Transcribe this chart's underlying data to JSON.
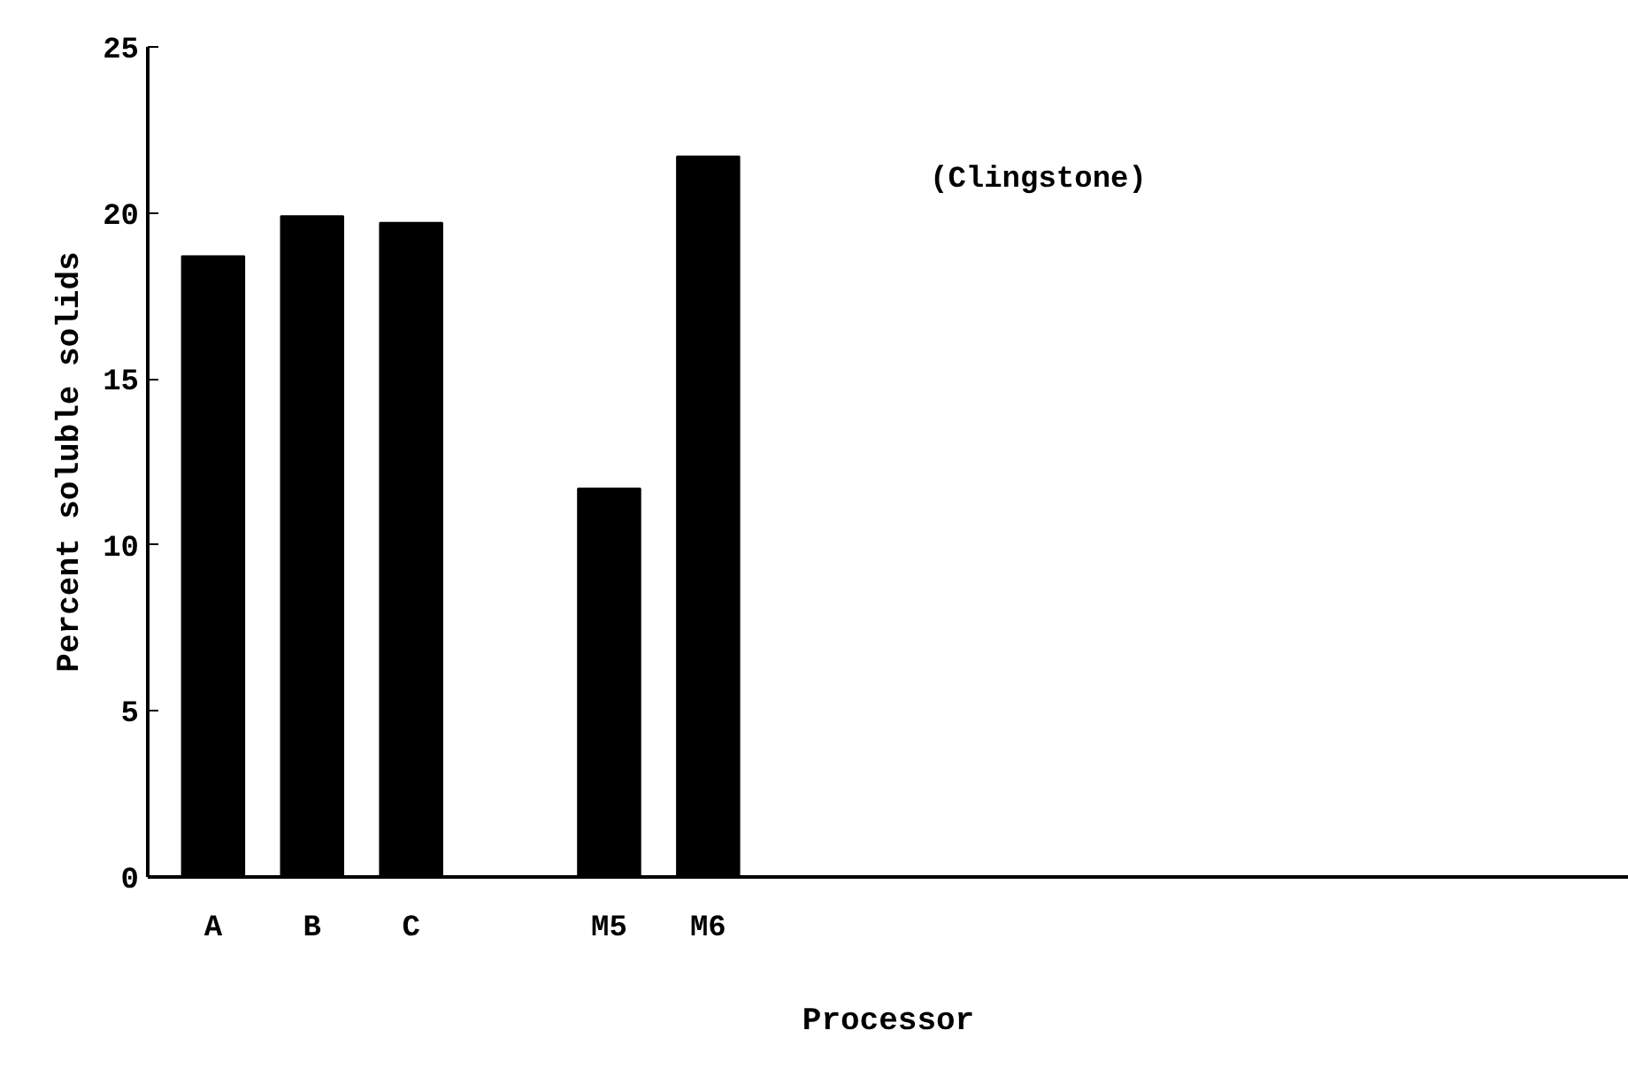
{
  "chart_data": {
    "type": "bar",
    "categories": [
      "A",
      "B",
      "C",
      null,
      "M5",
      "M6"
    ],
    "values": [
      18.7,
      19.9,
      19.7,
      null,
      11.7,
      21.7
    ],
    "color": "#000000",
    "xlabel": "Processor",
    "ylabel": "Percent soluble solids",
    "ylim": [
      0,
      25
    ],
    "yticks": [
      0,
      5,
      10,
      15,
      20,
      25
    ],
    "annotations": [
      "(Clingstone)"
    ],
    "grid": false
  }
}
